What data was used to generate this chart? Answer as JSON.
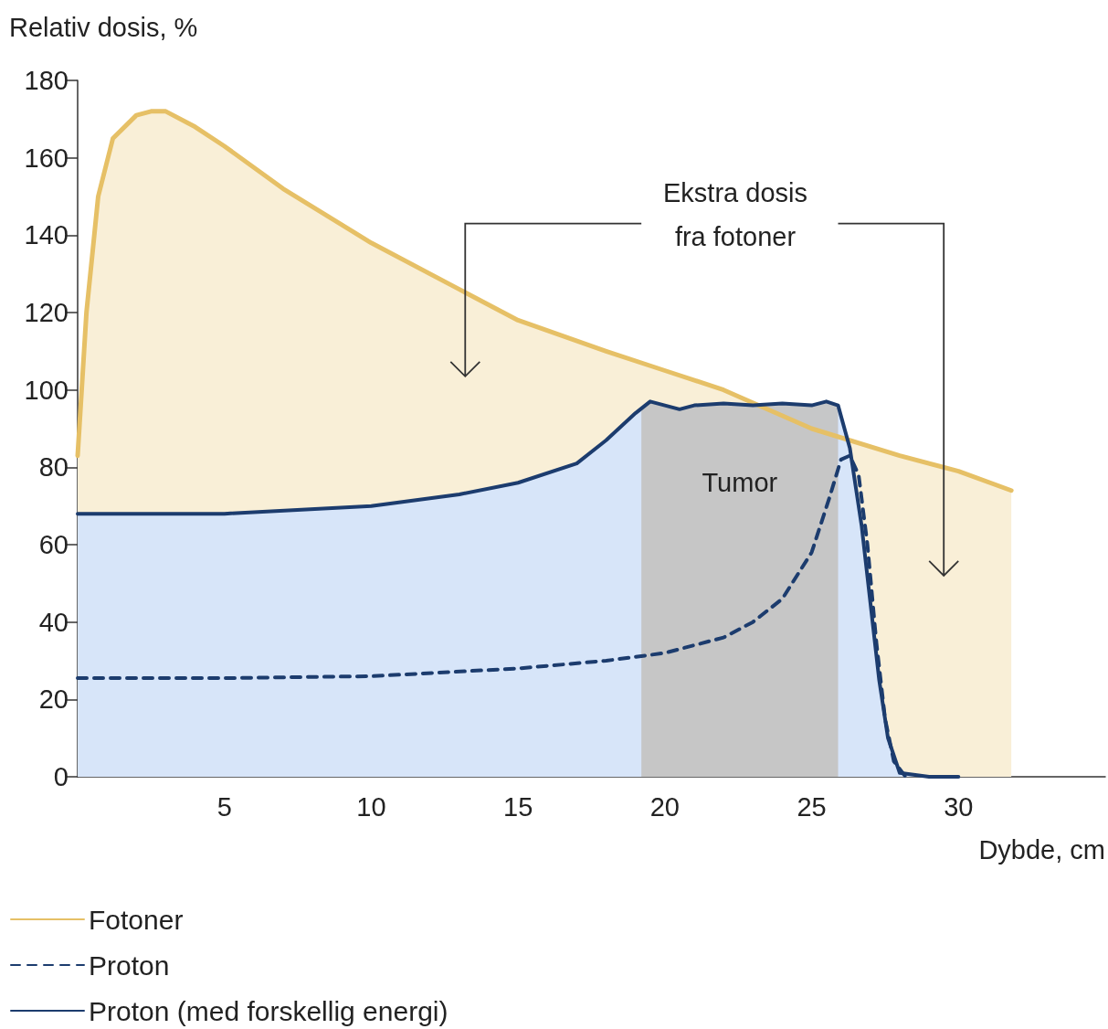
{
  "chart_data": {
    "type": "area",
    "xlabel": "Dybde, cm",
    "ylabel": "Relativ dosis, %",
    "xlim": [
      0,
      35
    ],
    "xticks": [
      5,
      10,
      15,
      20,
      25,
      30
    ],
    "ylim": [
      0,
      180
    ],
    "yticks": [
      0,
      20,
      40,
      60,
      80,
      100,
      120,
      140,
      160,
      180
    ],
    "grid": false,
    "legend": "bottom left",
    "marker": "none",
    "annotations": [
      "Ekstra dosis\nfra fotoner"
    ],
    "bands": [
      {
        "axis": "x",
        "from": 19.2,
        "to": 25.9,
        "label": "Tumor",
        "color": "#c6c6c6"
      }
    ],
    "series": [
      {
        "name": "Fotoner",
        "color": "#e6c066",
        "line_style": "solid",
        "x": [
          0,
          0.3,
          0.7,
          1.2,
          2,
          2.5,
          3,
          4,
          5,
          7,
          10,
          13,
          15,
          18,
          20,
          22,
          25,
          28,
          30,
          31.8
        ],
        "values": [
          83,
          120,
          150,
          165,
          171,
          172,
          172,
          168,
          163,
          152,
          138,
          126,
          118,
          110,
          105,
          100,
          90,
          83,
          79,
          74
        ]
      },
      {
        "name": "Proton",
        "type": "line",
        "color": "#1c3c6e",
        "line_style": "dashed",
        "x": [
          0,
          5,
          10,
          15,
          18,
          20,
          22,
          23,
          24,
          25,
          25.6,
          26,
          26.3,
          26.6,
          26.9,
          27.2,
          27.5,
          27.8,
          28.2
        ],
        "values": [
          25.5,
          25.5,
          26,
          28,
          30,
          32,
          36,
          40,
          46,
          58,
          72,
          82,
          83,
          78,
          60,
          35,
          15,
          4,
          0
        ]
      },
      {
        "name": "Proton (med forskellig energi)",
        "color": "#1c3c6e",
        "line_style": "solid",
        "x": [
          0,
          5,
          10,
          13,
          15,
          17,
          18,
          19,
          19.5,
          20,
          20.5,
          21,
          22,
          23,
          24,
          25,
          25.5,
          25.9,
          26.3,
          26.7,
          27,
          27.3,
          27.6,
          28,
          29,
          30
        ],
        "values": [
          68,
          68,
          70,
          73,
          76,
          81,
          87,
          94,
          97,
          96,
          95,
          96,
          96.5,
          96,
          96.5,
          96,
          97,
          96,
          85,
          65,
          45,
          25,
          10,
          1,
          0,
          0
        ]
      }
    ]
  }
}
